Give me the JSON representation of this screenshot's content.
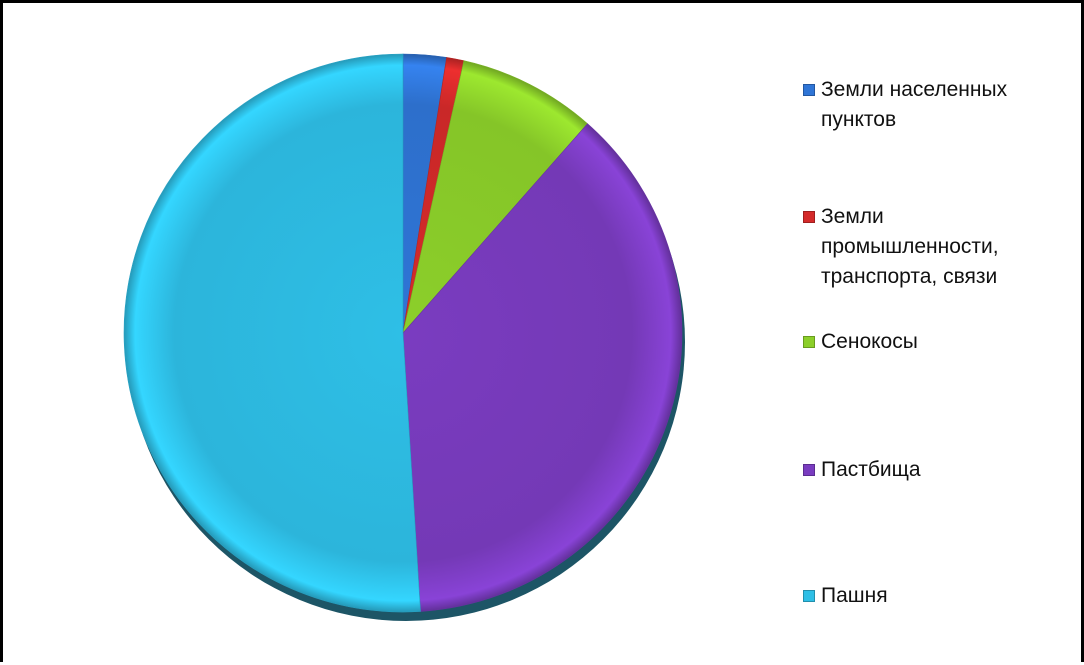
{
  "chart_data": {
    "type": "pie",
    "title": "",
    "categories": [
      "Земли населенных пунктов",
      "Земли промышленности, транспорта, связи",
      "Сенокосы",
      "Пастбища",
      "Пашня"
    ],
    "values": [
      2.5,
      1.0,
      8.0,
      37.5,
      51.0
    ],
    "colors": [
      "#2f75d6",
      "#d42a2a",
      "#8ccf2a",
      "#7a3cc0",
      "#2ebfe6"
    ],
    "legend_position": "right",
    "style": "3d-shaded"
  },
  "legend": {
    "items": [
      {
        "label": "Земли населенных пунктов",
        "color": "#2f75d6"
      },
      {
        "label": "Земли промышленности, транспорта, связи",
        "color": "#d42a2a"
      },
      {
        "label": "Сенокосы",
        "color": "#8ccf2a"
      },
      {
        "label": "Пастбища",
        "color": "#7a3cc0"
      },
      {
        "label": "Пашня",
        "color": "#2ebfe6"
      }
    ]
  }
}
